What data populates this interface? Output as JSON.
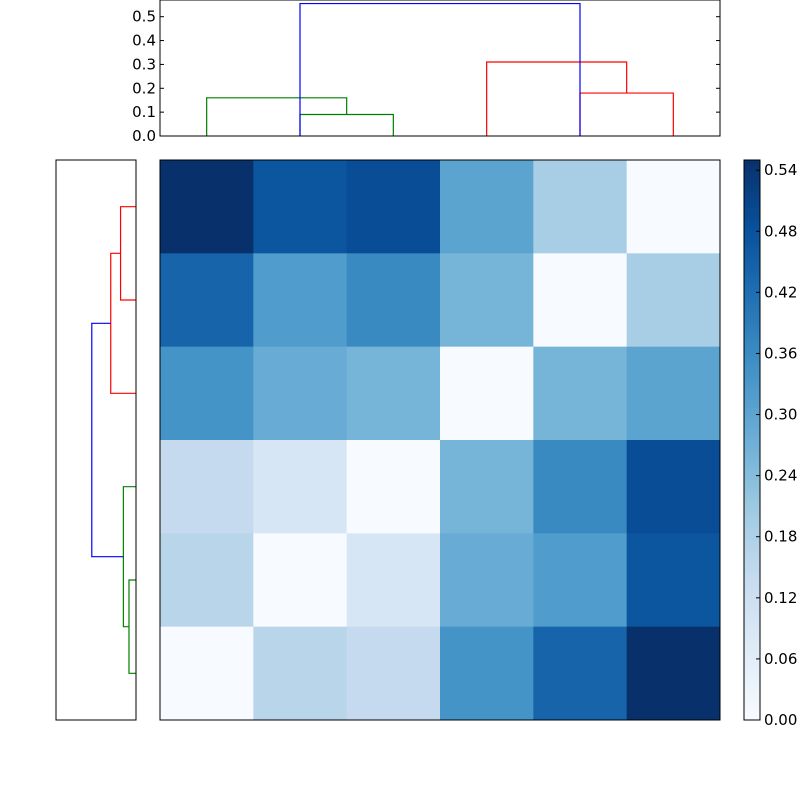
{
  "chart_data": [
    {
      "type": "heatmap",
      "title": "",
      "xlabel": "",
      "ylabel": "",
      "colormap": "Blues",
      "values": [
        [
          0.55,
          0.47,
          0.49,
          0.3,
          0.19,
          0.0
        ],
        [
          0.44,
          0.32,
          0.36,
          0.26,
          0.0,
          0.19
        ],
        [
          0.34,
          0.28,
          0.26,
          0.0,
          0.26,
          0.3
        ],
        [
          0.14,
          0.09,
          0.0,
          0.26,
          0.36,
          0.49
        ],
        [
          0.16,
          0.0,
          0.09,
          0.28,
          0.32,
          0.47
        ],
        [
          0.0,
          0.16,
          0.14,
          0.34,
          0.44,
          0.55
        ]
      ],
      "colorbar": {
        "range": [
          0.0,
          0.55
        ],
        "ticks": [
          0.0,
          0.06,
          0.12,
          0.18,
          0.24,
          0.3,
          0.36,
          0.42,
          0.48,
          0.54
        ],
        "tick_labels": [
          "0.00",
          "0.06",
          "0.12",
          "0.18",
          "0.24",
          "0.30",
          "0.36",
          "0.42",
          "0.48",
          "0.54"
        ]
      }
    },
    {
      "type": "dendrogram",
      "orientation": "top",
      "ylim": [
        0,
        0.57
      ],
      "ticks": [
        0.0,
        0.1,
        0.2,
        0.3,
        0.4,
        0.5
      ],
      "tick_labels": [
        "0.0",
        "0.1",
        "0.2",
        "0.3",
        "0.4",
        "0.5"
      ],
      "leaf_count": 6,
      "links": [
        {
          "left": 1,
          "right": 2,
          "height": 0.09,
          "color": "#008000"
        },
        {
          "left": 0,
          "right": 1.5,
          "height": 0.16,
          "color": "#008000"
        },
        {
          "left": 4,
          "right": 5,
          "height": 0.18,
          "color": "#ff0000"
        },
        {
          "left": 3,
          "right": 4.5,
          "height": 0.31,
          "color": "#ff0000"
        },
        {
          "left": 1,
          "right": 4,
          "height": 0.555,
          "color": "#0000ff"
        }
      ]
    },
    {
      "type": "dendrogram",
      "orientation": "left",
      "xlim": [
        0,
        0.57
      ],
      "leaf_count": 6,
      "links": [
        {
          "left": 4,
          "right": 5,
          "height": 0.05,
          "color": "#008000"
        },
        {
          "left": 3,
          "right": 4.5,
          "height": 0.09,
          "color": "#008000"
        },
        {
          "left": 0,
          "right": 1,
          "height": 0.11,
          "color": "#ff0000"
        },
        {
          "left": 0.5,
          "right": 2,
          "height": 0.18,
          "color": "#ff0000"
        },
        {
          "left": 1.25,
          "right": 3.75,
          "height": 0.315,
          "color": "#0000ff"
        }
      ]
    }
  ]
}
